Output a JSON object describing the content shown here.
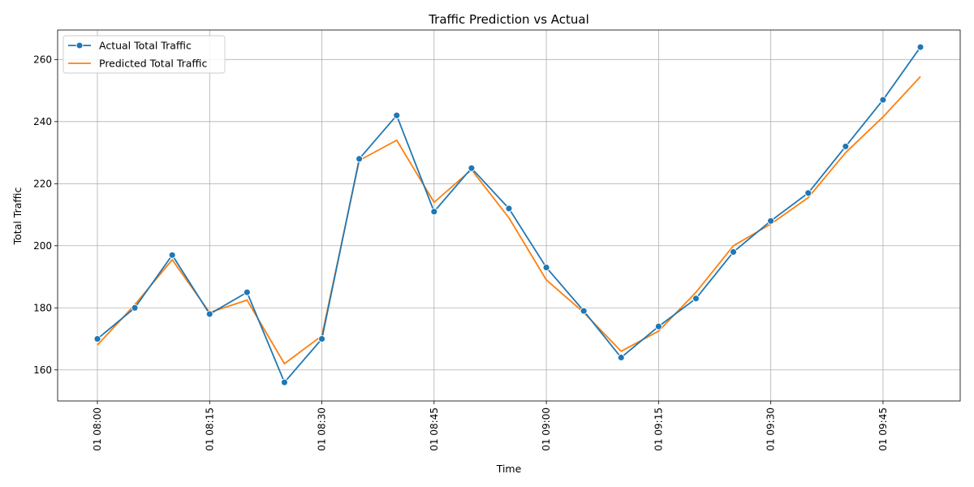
{
  "chart_data": {
    "type": "line",
    "title": "Traffic Prediction vs Actual",
    "xlabel": "Time",
    "ylabel": "Total Traffic",
    "x": [
      "01 08:00",
      "01 08:05",
      "01 08:10",
      "01 08:15",
      "01 08:20",
      "01 08:25",
      "01 08:30",
      "01 08:35",
      "01 08:40",
      "01 08:45",
      "01 08:50",
      "01 08:55",
      "01 09:00",
      "01 09:05",
      "01 09:10",
      "01 09:15",
      "01 09:20",
      "01 09:25",
      "01 09:30",
      "01 09:35",
      "01 09:40",
      "01 09:45",
      "01 09:50"
    ],
    "xticks": [
      "01 08:00",
      "01 08:15",
      "01 08:30",
      "01 08:45",
      "01 09:00",
      "01 09:15",
      "01 09:30",
      "01 09:45"
    ],
    "yticks": [
      160,
      180,
      200,
      220,
      240,
      260
    ],
    "ylim": [
      150,
      269.5
    ],
    "grid": true,
    "legend_position": "upper-left",
    "series": [
      {
        "name": "Actual Total Traffic",
        "color": "#1f77b4",
        "marker": "circle",
        "values": [
          170,
          180,
          197,
          178,
          185,
          156,
          170,
          228,
          242,
          211,
          225,
          212,
          193,
          179,
          164,
          174,
          183,
          198,
          208,
          217,
          232,
          247,
          264
        ]
      },
      {
        "name": "Predicted Total Traffic",
        "color": "#ff7f0e",
        "marker": "none",
        "values": [
          168,
          181,
          195.5,
          178.5,
          182.5,
          162,
          171,
          227.5,
          234,
          214,
          224.5,
          209,
          189,
          178.5,
          166,
          172.5,
          185,
          200,
          207,
          215.5,
          230,
          241.5,
          254.5
        ]
      }
    ]
  }
}
